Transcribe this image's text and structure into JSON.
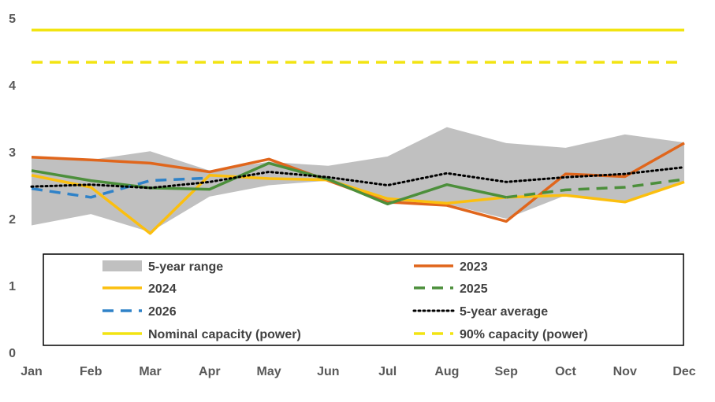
{
  "chart_data": {
    "type": "line",
    "categories": [
      "Jan",
      "Feb",
      "Mar",
      "Apr",
      "May",
      "Jun",
      "Jul",
      "Aug",
      "Sep",
      "Oct",
      "Nov",
      "Dec"
    ],
    "ylim": [
      0,
      5.2
    ],
    "yticks": [
      0,
      1,
      2,
      3,
      4,
      5
    ],
    "range": {
      "name": "5-year range",
      "color": "#c0c0c0",
      "low": [
        1.9,
        2.07,
        1.8,
        2.33,
        2.5,
        2.57,
        2.22,
        2.22,
        2.0,
        2.35,
        2.25,
        2.56
      ],
      "high": [
        2.93,
        2.88,
        3.01,
        2.72,
        2.85,
        2.79,
        2.93,
        3.37,
        3.13,
        3.06,
        3.26,
        3.14
      ]
    },
    "series": [
      {
        "name": "2023",
        "color": "#e0661c",
        "dash": "solid",
        "values": [
          2.92,
          2.88,
          2.83,
          2.7,
          2.89,
          2.57,
          2.25,
          2.2,
          1.96,
          2.67,
          2.63,
          3.13
        ]
      },
      {
        "name": "2024",
        "color": "#fbbf0f",
        "dash": "solid",
        "values": [
          2.65,
          2.47,
          1.78,
          2.65,
          2.6,
          2.58,
          2.3,
          2.23,
          2.32,
          2.35,
          2.25,
          2.55
        ]
      },
      {
        "name": "2025",
        "color": "#4c8f3b",
        "dash": "solid",
        "values": [
          2.72,
          2.57,
          2.46,
          2.44,
          2.83,
          2.59,
          2.22,
          2.51,
          2.32,
          null,
          null,
          null
        ]
      },
      {
        "name": "2025",
        "color": "#4c8f3b",
        "dash": "dashed",
        "values": [
          null,
          null,
          null,
          null,
          null,
          null,
          null,
          null,
          2.32,
          2.43,
          2.47,
          2.59
        ]
      },
      {
        "name": "2026",
        "color": "#2f82c8",
        "dash": "dashed",
        "values": [
          2.45,
          2.32,
          2.57,
          2.61,
          null,
          null,
          null,
          null,
          null,
          null,
          null,
          null
        ]
      },
      {
        "name": "5-year average",
        "color": "#000000",
        "dash": "dotted",
        "values": [
          2.48,
          2.51,
          2.46,
          2.55,
          2.7,
          2.62,
          2.5,
          2.68,
          2.55,
          2.62,
          2.67,
          2.77
        ]
      },
      {
        "name": "Nominal capacity (power)",
        "color": "#f2e411",
        "dash": "solid",
        "values": [
          4.82,
          4.82,
          4.82,
          4.82,
          4.82,
          4.82,
          4.82,
          4.82,
          4.82,
          4.82,
          4.82,
          4.82
        ]
      },
      {
        "name": "90% capacity (power)",
        "color": "#f2e411",
        "dash": "dashed",
        "values": [
          4.34,
          4.34,
          4.34,
          4.34,
          4.34,
          4.34,
          4.34,
          4.34,
          4.34,
          4.34,
          4.34,
          4.34
        ]
      }
    ],
    "legend": [
      {
        "label": "5-year range",
        "kind": "area",
        "color": "#c0c0c0"
      },
      {
        "label": "2023",
        "kind": "solid",
        "color": "#e0661c"
      },
      {
        "label": "2024",
        "kind": "solid",
        "color": "#fbbf0f"
      },
      {
        "label": "2025",
        "kind": "dashed",
        "color": "#4c8f3b"
      },
      {
        "label": "2026",
        "kind": "dashed",
        "color": "#2f82c8"
      },
      {
        "label": "5-year average",
        "kind": "dotted",
        "color": "#000000"
      },
      {
        "label": "Nominal capacity (power)",
        "kind": "solid",
        "color": "#f2e411"
      },
      {
        "label": "90% capacity (power)",
        "kind": "dashed",
        "color": "#f2e411"
      }
    ],
    "legend_position": "bottom-center inside plot",
    "grid": false
  }
}
